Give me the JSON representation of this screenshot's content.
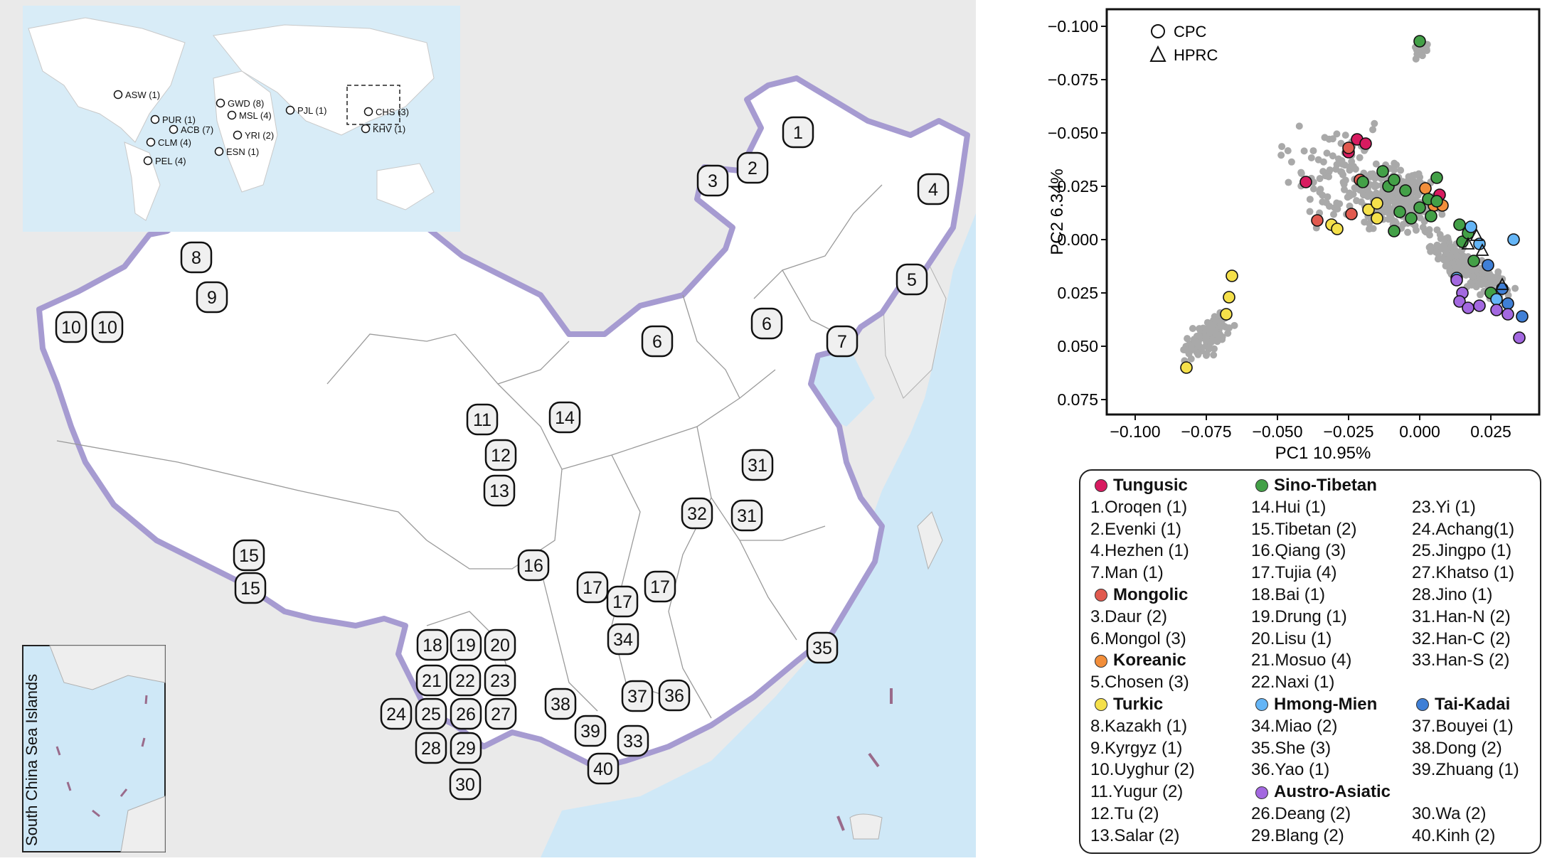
{
  "map": {
    "inset_label": "South China Sea Islands",
    "world_inset_labels": [
      "ASW (1)",
      "PUR (1)",
      "ACB (7)",
      "CLM (4)",
      "PEL (4)",
      "GWD (8)",
      "MSL (4)",
      "YRI (2)",
      "ESN (1)",
      "PJL (1)",
      "CHS (3)",
      "KHV (1)"
    ],
    "markers": [
      "1",
      "2",
      "3",
      "4",
      "5",
      "6",
      "6",
      "7",
      "8",
      "9",
      "10",
      "10",
      "11",
      "12",
      "13",
      "14",
      "15",
      "15",
      "16",
      "17",
      "17",
      "17",
      "18",
      "19",
      "20",
      "21",
      "22",
      "23",
      "24",
      "25",
      "26",
      "27",
      "28",
      "29",
      "30",
      "31",
      "31",
      "32",
      "33",
      "34",
      "35",
      "36",
      "37",
      "38",
      "39",
      "40"
    ]
  },
  "chart_data": {
    "type": "scatter",
    "xlabel": "PC1  10.95%",
    "ylabel": "PC2  6.34%",
    "xlim": [
      -0.11,
      0.042
    ],
    "ylim": [
      0.082,
      -0.108
    ],
    "y_inverted": true,
    "xticks": [
      "−0.100",
      "−0.075",
      "−0.050",
      "−0.025",
      "0.000",
      "0.025"
    ],
    "xtick_values": [
      -0.1,
      -0.075,
      -0.05,
      -0.025,
      0.0,
      0.025
    ],
    "yticks": [
      "−0.100",
      "−0.075",
      "−0.050",
      "−0.025",
      "0.000",
      "0.025",
      "0.050",
      "0.075"
    ],
    "ytick_values": [
      -0.1,
      -0.075,
      -0.05,
      -0.025,
      0.0,
      0.025,
      0.05,
      0.075
    ],
    "shape_legend": [
      {
        "label": "CPC",
        "shape": "circle"
      },
      {
        "label": "HPRC",
        "shape": "triangle"
      }
    ],
    "background_color": "#a9a9a9",
    "series": [
      {
        "name": "Tungusic",
        "color": "#d81b60",
        "marker": "circle",
        "x": [
          -0.022,
          -0.019,
          -0.025,
          -0.04,
          0.007
        ],
        "y": [
          -0.047,
          -0.045,
          -0.041,
          -0.027,
          -0.021
        ]
      },
      {
        "name": "Mongolic",
        "color": "#e15a4f",
        "marker": "circle",
        "x": [
          -0.025,
          -0.021,
          -0.036,
          -0.024
        ],
        "y": [
          -0.043,
          -0.028,
          -0.009,
          -0.012
        ]
      },
      {
        "name": "Koreanic",
        "color": "#f28e3a",
        "marker": "circle",
        "x": [
          0.002,
          0.005,
          0.008
        ],
        "y": [
          -0.024,
          -0.016,
          -0.016
        ]
      },
      {
        "name": "Turkic",
        "color": "#f5e04a",
        "marker": "circle",
        "x": [
          -0.018,
          -0.015,
          -0.031,
          -0.029,
          -0.066,
          -0.067,
          -0.068,
          -0.082,
          -0.015
        ],
        "y": [
          -0.014,
          -0.01,
          -0.007,
          -0.005,
          0.017,
          0.027,
          0.035,
          0.06,
          -0.017
        ]
      },
      {
        "name": "Sino-Tibetan",
        "color": "#43a047",
        "marker": "circle",
        "x": [
          0.0,
          -0.013,
          -0.011,
          -0.009,
          -0.005,
          0.0,
          0.003,
          0.004,
          0.006,
          0.006,
          -0.02,
          -0.009,
          -0.007,
          0.014,
          0.015,
          0.017,
          0.019,
          0.025,
          -0.003
        ],
        "y": [
          -0.093,
          -0.032,
          -0.025,
          -0.028,
          -0.023,
          -0.015,
          -0.019,
          -0.011,
          -0.018,
          -0.029,
          -0.027,
          -0.004,
          -0.013,
          -0.007,
          0.001,
          -0.003,
          0.01,
          0.025,
          -0.01
        ]
      },
      {
        "name": "Hmong-Mien",
        "color": "#64b5f6",
        "marker": "circle",
        "x": [
          0.018,
          0.021,
          0.033,
          0.013,
          0.027
        ],
        "y": [
          -0.006,
          0.002,
          0.0,
          0.018,
          0.028
        ]
      },
      {
        "name": "Tai-Kadai",
        "color": "#3f7fd6",
        "marker": "circle",
        "x": [
          0.024,
          0.029,
          0.031,
          0.036
        ],
        "y": [
          0.012,
          0.023,
          0.03,
          0.036
        ]
      },
      {
        "name": "Austro-Asiatic",
        "color": "#a368e0",
        "marker": "circle",
        "x": [
          0.013,
          0.015,
          0.014,
          0.017,
          0.021,
          0.027,
          0.031,
          0.035
        ],
        "y": [
          0.019,
          0.025,
          0.029,
          0.032,
          0.031,
          0.033,
          0.035,
          0.046
        ]
      },
      {
        "name": "HPRC",
        "color": "#ffffff",
        "marker": "triangle",
        "x": [
          0.017,
          0.02,
          0.022,
          0.029
        ],
        "y": [
          0.002,
          -0.002,
          0.005,
          0.021
        ]
      }
    ]
  },
  "legend": {
    "col1": [
      {
        "text": "Tungusic",
        "head": true,
        "color": "#d81b60"
      },
      {
        "text": "1.Oroqen (1)"
      },
      {
        "text": "2.Evenki (1)"
      },
      {
        "text": "4.Hezhen (1)"
      },
      {
        "text": "7.Man (1)"
      },
      {
        "text": "Mongolic",
        "head": true,
        "color": "#e15a4f"
      },
      {
        "text": "3.Daur (2)"
      },
      {
        "text": "6.Mongol  (3)"
      },
      {
        "text": "Koreanic",
        "head": true,
        "color": "#f28e3a"
      },
      {
        "text": "5.Chosen (3)"
      },
      {
        "text": "Turkic",
        "head": true,
        "color": "#f5e04a"
      },
      {
        "text": "8.Kazakh (1)"
      },
      {
        "text": "9.Kyrgyz (1)"
      },
      {
        "text": "10.Uyghur (2)"
      },
      {
        "text": "11.Yugur (2)"
      },
      {
        "text": "12.Tu  (2)"
      },
      {
        "text": "13.Salar (2)"
      }
    ],
    "col2": [
      {
        "text": "Sino-Tibetan",
        "head": true,
        "color": "#43a047"
      },
      {
        "text": "14.Hui (1)"
      },
      {
        "text": "15.Tibetan (2)"
      },
      {
        "text": "16.Qiang (3)"
      },
      {
        "text": "17.Tujia  (4)"
      },
      {
        "text": "18.Bai (1)"
      },
      {
        "text": "19.Drung (1)"
      },
      {
        "text": "20.Lisu (1)"
      },
      {
        "text": "21.Mosuo (4)"
      },
      {
        "text": "22.Naxi (1)"
      },
      {
        "text": "Hmong-Mien",
        "head": true,
        "color": "#64b5f6"
      },
      {
        "text": "34.Miao (2)"
      },
      {
        "text": "35.She (3)"
      },
      {
        "text": "36.Yao (1)"
      },
      {
        "text": "Austro-Asiatic",
        "head": true,
        "color": "#a368e0"
      },
      {
        "text": "26.Deang (2)"
      },
      {
        "text": "29.Blang (2)"
      }
    ],
    "col3": [
      {
        "text": ""
      },
      {
        "text": "23.Yi (1)"
      },
      {
        "text": "24.Achang(1)"
      },
      {
        "text": "25.Jingpo (1)"
      },
      {
        "text": "27.Khatso (1)"
      },
      {
        "text": "28.Jino (1)"
      },
      {
        "text": "31.Han-N (2)"
      },
      {
        "text": "32.Han-C (2)"
      },
      {
        "text": "33.Han-S (2)"
      },
      {
        "text": ""
      },
      {
        "text": "Tai-Kadai",
        "head": true,
        "color": "#3f7fd6"
      },
      {
        "text": "37.Bouyei (1)"
      },
      {
        "text": "38.Dong (2)"
      },
      {
        "text": "39.Zhuang (1)"
      },
      {
        "text": ""
      },
      {
        "text": "30.Wa (2)"
      },
      {
        "text": "40.Kinh (2)"
      }
    ]
  }
}
